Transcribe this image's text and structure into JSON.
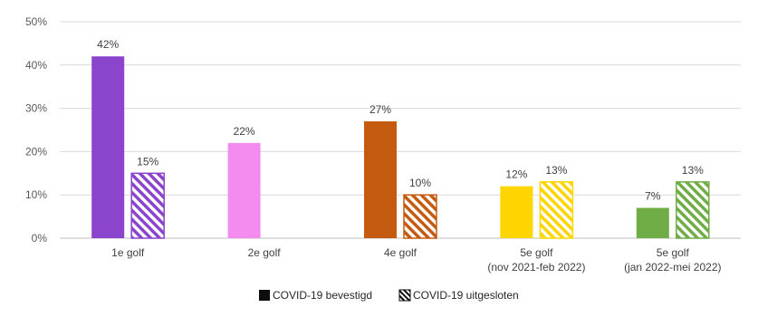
{
  "chart_data": {
    "type": "bar",
    "categories": [
      [
        "1e golf"
      ],
      [
        "2e golf"
      ],
      [
        "4e golf"
      ],
      [
        "5e golf",
        "(nov 2021-feb 2022)"
      ],
      [
        "5e golf",
        "(jan 2022-mei 2022)"
      ]
    ],
    "series": [
      {
        "name": "COVID-19 bevestigd",
        "values": [
          42,
          22,
          27,
          12,
          7
        ],
        "labels": [
          "42%",
          "22%",
          "27%",
          "12%",
          "7%"
        ],
        "style": "solid"
      },
      {
        "name": "COVID-19 uitgesloten",
        "values": [
          15,
          null,
          10,
          13,
          13
        ],
        "labels": [
          "15%",
          null,
          "10%",
          "13%",
          "13%"
        ],
        "style": "hatched"
      }
    ],
    "colors": [
      "#8b44cc",
      "#f48cf0",
      "#c55a11",
      "#ffd500",
      "#70ad47"
    ],
    "legend_swatch_color": "#0d0d0d",
    "ylim": [
      0,
      50
    ],
    "yticks": [
      "0%",
      "10%",
      "20%",
      "30%",
      "40%",
      "50%"
    ],
    "grid": true,
    "legend_position": "bottom"
  }
}
